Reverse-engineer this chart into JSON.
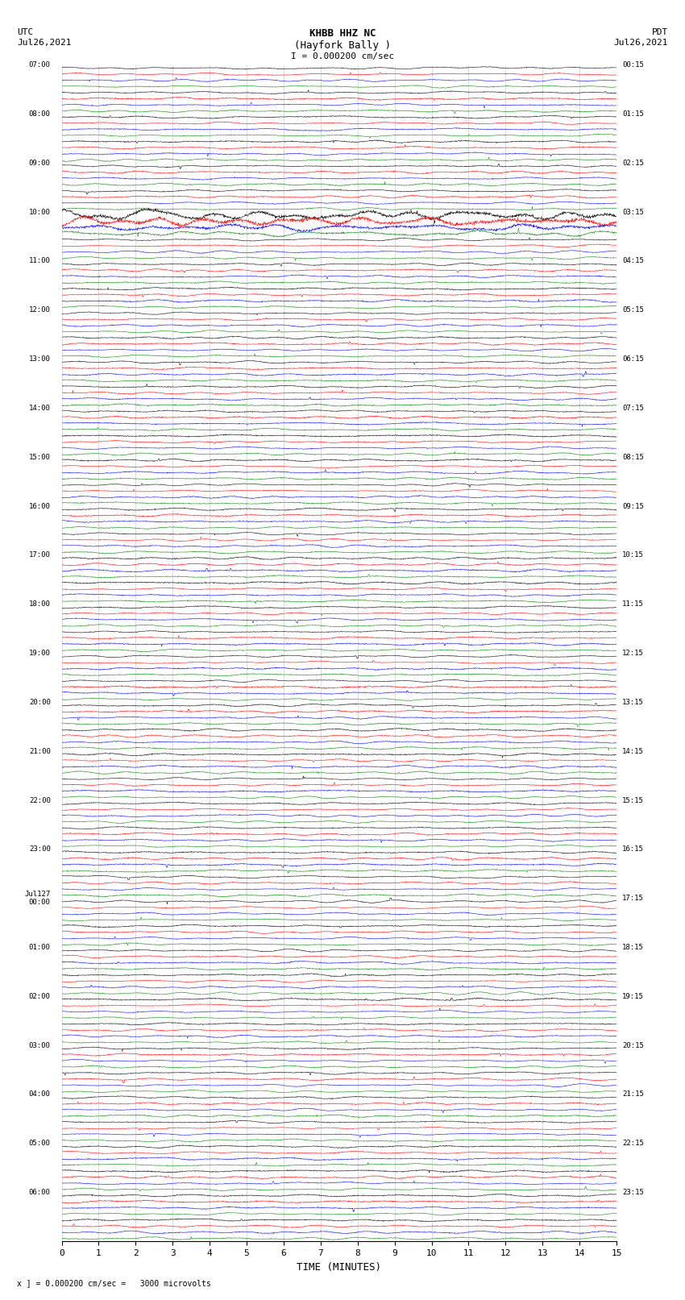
{
  "title_line1": "KHBB HHZ NC",
  "title_line2": "(Hayfork Bally )",
  "title_scale": "I = 0.000200 cm/sec",
  "footer": "x ] = 0.000200 cm/sec =   3000 microvolts",
  "xlabel": "TIME (MINUTES)",
  "background_color": "#ffffff",
  "trace_colors": [
    "#000000",
    "#ff0000",
    "#0000ff",
    "#008800"
  ],
  "n_groups": 48,
  "traces_per_group": 4,
  "left_times": [
    "07:00",
    "08:00",
    "09:00",
    "10:00",
    "11:00",
    "12:00",
    "13:00",
    "14:00",
    "15:00",
    "16:00",
    "17:00",
    "18:00",
    "19:00",
    "20:00",
    "21:00",
    "22:00",
    "23:00",
    "Jul127\n00:00",
    "01:00",
    "02:00",
    "03:00",
    "04:00",
    "05:00",
    "06:00"
  ],
  "right_times": [
    "00:15",
    "01:15",
    "02:15",
    "03:15",
    "04:15",
    "05:15",
    "06:15",
    "07:15",
    "08:15",
    "09:15",
    "10:15",
    "11:15",
    "12:15",
    "13:15",
    "14:15",
    "15:15",
    "16:15",
    "17:15",
    "18:15",
    "19:15",
    "20:15",
    "21:15",
    "22:15",
    "23:15"
  ],
  "xmin": 0,
  "xmax": 15,
  "xticks": [
    0,
    1,
    2,
    3,
    4,
    5,
    6,
    7,
    8,
    9,
    10,
    11,
    12,
    13,
    14,
    15
  ],
  "big_amplitude_group": 6,
  "n_points": 2000
}
